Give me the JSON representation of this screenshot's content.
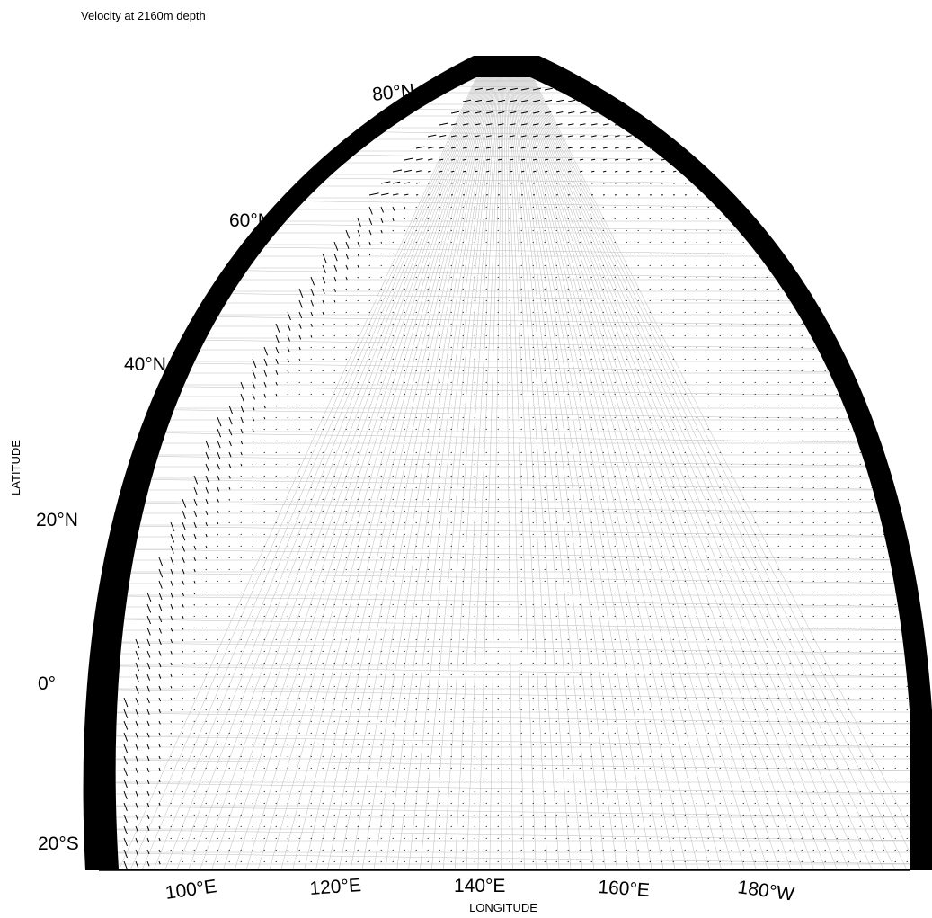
{
  "title": "Velocity at 2160m depth",
  "axes": {
    "x_label": "LONGITUDE",
    "y_label": "LATITUDE"
  },
  "latitude_labels": [
    "80°N",
    "60°N",
    "40°N",
    "20°N",
    "0°",
    "20°S"
  ],
  "longitude_labels": [
    "100°E",
    "120°E",
    "140°E",
    "160°E",
    "180°W"
  ]
}
